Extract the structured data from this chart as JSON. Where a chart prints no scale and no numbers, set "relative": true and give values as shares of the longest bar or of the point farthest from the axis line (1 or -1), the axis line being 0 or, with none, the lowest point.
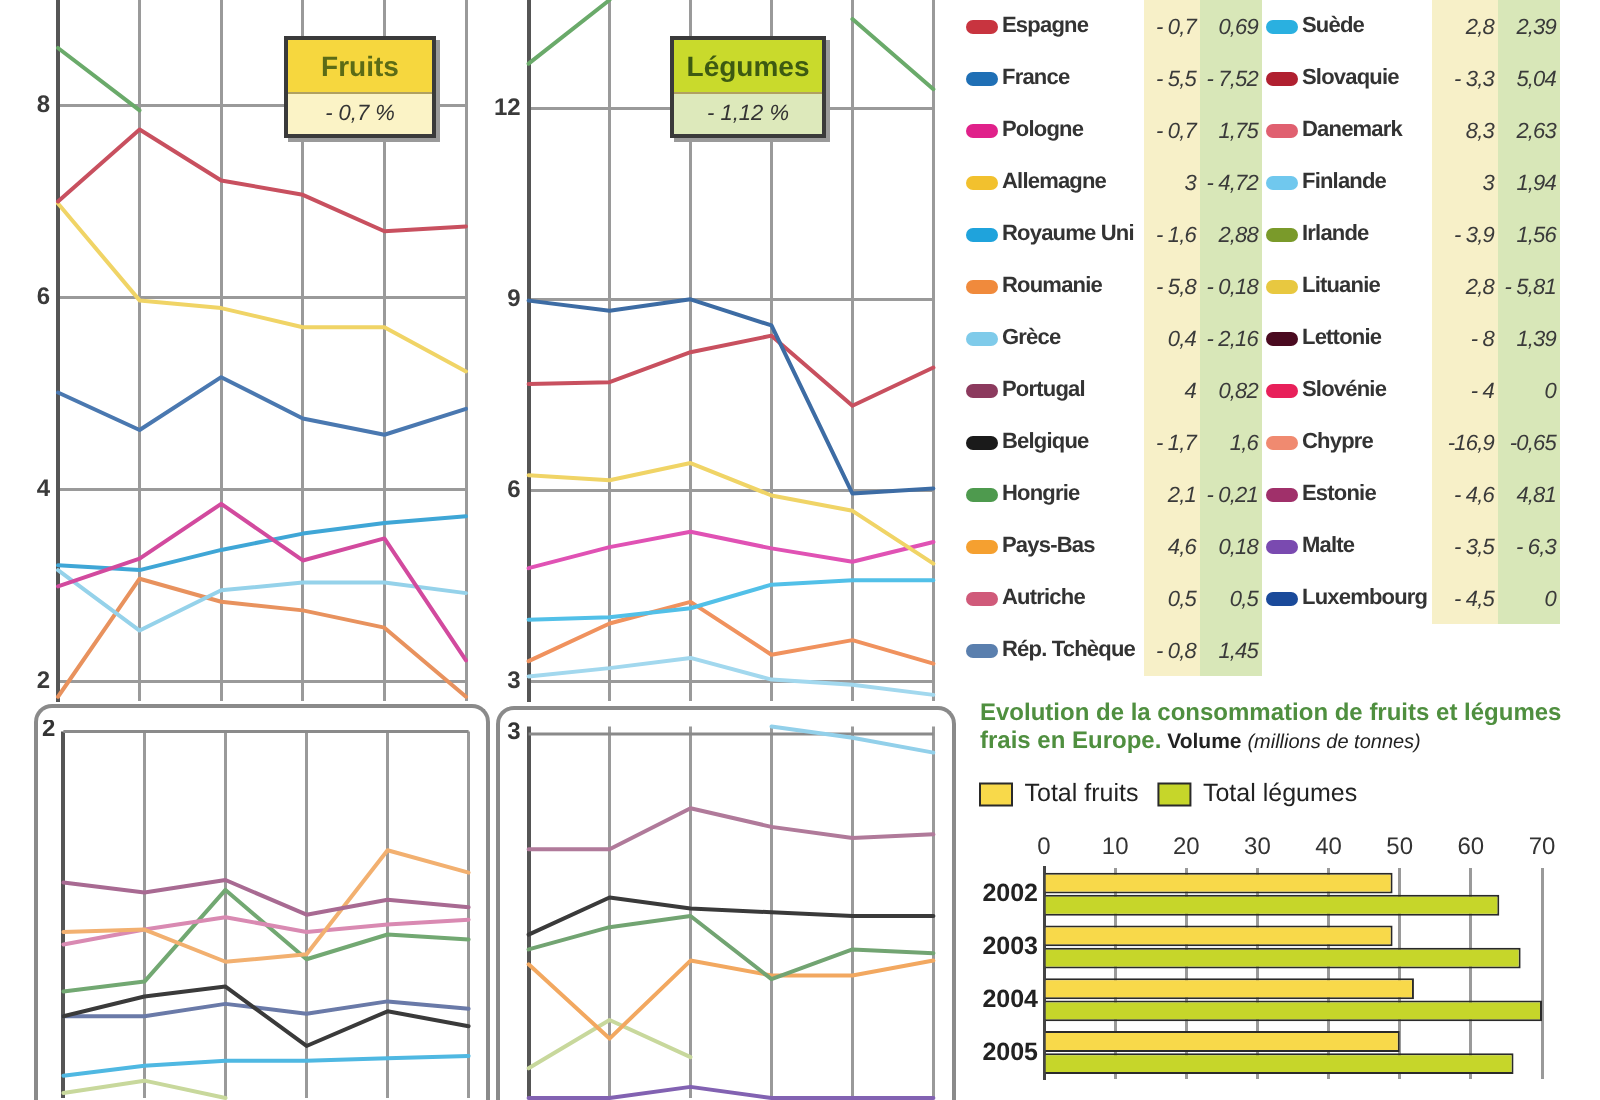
{
  "chart_data": [
    {
      "type": "line",
      "categories": [
        null,
        null,
        null,
        null,
        null,
        null
      ],
      "series": [
        {
          "color": "#6aaa6a",
          "values": [
            8.6,
            7.95,
            null,
            null,
            null,
            null
          ]
        },
        {
          "color": "#c8505f",
          "values": [
            7.0,
            7.75,
            7.22,
            7.07,
            6.69,
            6.74
          ]
        },
        {
          "color": "#f0d466",
          "values": [
            6.98,
            5.97,
            5.89,
            5.69,
            5.69,
            5.23
          ]
        },
        {
          "color": "#4a78b0",
          "values": [
            5.01,
            4.62,
            5.17,
            4.74,
            4.57,
            4.84
          ]
        },
        {
          "color": "#d24a9e",
          "values": [
            2.99,
            3.28,
            3.85,
            3.26,
            3.49,
            2.22
          ]
        },
        {
          "color": "#3fa6d6",
          "values": [
            3.21,
            3.16,
            3.37,
            3.54,
            3.65,
            3.72
          ]
        },
        {
          "color": "#95d2ea",
          "values": [
            3.16,
            2.53,
            2.95,
            3.03,
            3.03,
            2.92
          ]
        },
        {
          "color": "#e8925e",
          "values": [
            1.84,
            3.07,
            2.83,
            2.74,
            2.56,
            1.84
          ]
        }
      ],
      "ylim": [
        1.8,
        9.1
      ],
      "yticks": [
        2,
        4,
        6,
        8
      ],
      "grid": true,
      "tick_labels": "y",
      "marker": "none",
      "annotations": [
        "Fruits",
        "- 0,7 %"
      ]
    },
    {
      "type": "line",
      "categories": [
        null,
        null,
        null,
        null,
        null,
        null
      ],
      "series": [
        {
          "color": "#6aaa6a",
          "values": [
            12.7,
            13.7,
            null,
            null,
            13.4,
            12.3
          ]
        },
        {
          "color": "#3d6ca4",
          "values": [
            8.98,
            8.82,
            9.0,
            8.59,
            5.95,
            6.03
          ]
        },
        {
          "color": "#c8505f",
          "values": [
            7.67,
            7.7,
            8.17,
            8.43,
            7.33,
            7.93
          ]
        },
        {
          "color": "#f0d466",
          "values": [
            6.24,
            6.16,
            6.43,
            5.92,
            5.68,
            4.85
          ]
        },
        {
          "color": "#e052b4",
          "values": [
            4.78,
            5.11,
            5.35,
            5.09,
            4.88,
            5.19
          ]
        },
        {
          "color": "#52c0e8",
          "values": [
            3.97,
            4.01,
            4.15,
            4.52,
            4.59,
            4.59
          ]
        },
        {
          "color": "#f0925e",
          "values": [
            3.32,
            3.91,
            4.25,
            3.42,
            3.65,
            3.28
          ]
        },
        {
          "color": "#a2d8ee",
          "values": [
            3.08,
            3.21,
            3.37,
            3.03,
            2.95,
            2.79
          ]
        }
      ],
      "ylim": [
        2.7,
        13.7
      ],
      "yticks": [
        3,
        6,
        9,
        12
      ],
      "grid": true,
      "tick_labels": "y",
      "marker": "none",
      "annotations": [
        "Légumes",
        "- 1,12 %"
      ]
    },
    {
      "type": "other",
      "categories": [
        "Espagne",
        "France",
        "Pologne",
        "Allemagne",
        "Royaume Uni",
        "Roumanie",
        "Grèce",
        "Portugal",
        "Belgique",
        "Hongrie",
        "Pays-Bas",
        "Autriche",
        "Rép. Tchèque"
      ],
      "colors": [
        "#c8343f",
        "#1f6fb5",
        "#e0218a",
        "#f2c12e",
        "#1fa3dc",
        "#f08a3c",
        "#7fcbea",
        "#8c3a5e",
        "#1a1a1a",
        "#4e9a4e",
        "#f5a030",
        "#d05a7a",
        "#5a7fae"
      ],
      "series": [
        {
          "color": "#f7f0c8",
          "values": [
            -0.7,
            -5.5,
            -0.7,
            3,
            -1.6,
            -5.8,
            0.4,
            4,
            -1.7,
            2.1,
            4.6,
            0.5,
            -0.8
          ],
          "value_labels": [
            "- 0,7",
            "- 5,5",
            "- 0,7",
            "3",
            "- 1,6",
            "- 5,8",
            "0,4",
            "4",
            "- 1,7",
            "2,1",
            "4,6",
            "0,5",
            "- 0,8"
          ]
        },
        {
          "color": "#d8e7b8",
          "values": [
            0.69,
            -7.52,
            1.75,
            -4.72,
            2.88,
            -0.18,
            -2.16,
            0.82,
            1.6,
            -0.21,
            0.18,
            0.5,
            1.45
          ],
          "value_labels": [
            "0,69",
            "- 7,52",
            "1,75",
            "- 4,72",
            "2,88",
            "- 0,18",
            "- 2,16",
            "0,82",
            "1,6",
            "- 0,21",
            "0,18",
            "0,5",
            "1,45"
          ]
        }
      ]
    },
    {
      "type": "other",
      "categories": [
        "Suède",
        "Slovaquie",
        "Danemark",
        "Finlande",
        "Irlande",
        "Lituanie",
        "Lettonie",
        "Slovénie",
        "Chypre",
        "Estonie",
        "Malte",
        "Luxembourg"
      ],
      "colors": [
        "#2ab0e0",
        "#b02030",
        "#e06070",
        "#70c8ee",
        "#7a9a2a",
        "#e8c840",
        "#4a0a20",
        "#e8205a",
        "#f08a70",
        "#a0306a",
        "#7a4ab0",
        "#1a4a9a"
      ],
      "series": [
        {
          "color": "#f7f0c8",
          "values": [
            2.8,
            -3.3,
            8.3,
            3,
            -3.9,
            2.8,
            -8,
            -4,
            -16.9,
            -4.6,
            -3.5,
            -4.5
          ],
          "value_labels": [
            "2,8",
            "- 3,3",
            "8,3",
            "3",
            "- 3,9",
            "2,8",
            "- 8",
            "- 4",
            "-16,9",
            "- 4,6",
            "- 3,5",
            "- 4,5"
          ]
        },
        {
          "color": "#d8e7b8",
          "values": [
            2.39,
            5.04,
            2.63,
            1.94,
            1.56,
            -5.81,
            1.39,
            0,
            -0.65,
            4.81,
            -6.3,
            0
          ],
          "value_labels": [
            "2,39",
            "5,04",
            "2,63",
            "1,94",
            "1,56",
            "- 5,81",
            "1,39",
            "0",
            "-0,65",
            "4,81",
            "- 6,3",
            "0"
          ]
        }
      ]
    },
    {
      "type": "line",
      "relative": true,
      "categories": [
        null,
        null,
        null,
        null,
        null,
        null
      ],
      "series": [
        {
          "color": "#a86a92",
          "values": [
            0.87,
            0.83,
            0.88,
            0.74,
            0.8,
            0.77
          ]
        },
        {
          "color": "#f2b070",
          "values": [
            0.67,
            0.68,
            0.55,
            0.58,
            1.0,
            0.91
          ]
        },
        {
          "color": "#d98ab2",
          "values": [
            0.62,
            0.68,
            0.73,
            0.67,
            0.7,
            0.72
          ]
        },
        {
          "color": "#72a872",
          "values": [
            0.43,
            0.47,
            0.84,
            0.56,
            0.66,
            0.64
          ]
        },
        {
          "color": "#3a3a3a",
          "values": [
            0.33,
            0.41,
            0.45,
            0.21,
            0.35,
            0.29
          ]
        },
        {
          "color": "#6a7aa8",
          "values": [
            0.33,
            0.33,
            0.38,
            0.34,
            0.39,
            0.36
          ]
        },
        {
          "color": "#4fb8e2",
          "values": [
            0.09,
            0.13,
            0.15,
            0.15,
            0.16,
            0.17
          ]
        },
        {
          "color": "#c8d89c",
          "values": [
            0.02,
            0.07,
            0.0,
            null,
            null,
            null
          ]
        }
      ],
      "ref_lines": [
        {
          "axis": "y",
          "value": 1.48
        }
      ],
      "annotations": [
        "2"
      ],
      "grid": "x",
      "tick_labels": false,
      "marker": "none"
    },
    {
      "type": "line",
      "relative": true,
      "categories": [
        null,
        null,
        null,
        null,
        null,
        null
      ],
      "series": [
        {
          "color": "#92d0ea",
          "values": [
            null,
            null,
            null,
            1.0,
            0.97,
            0.93
          ]
        },
        {
          "color": "#b07a9a",
          "values": [
            0.67,
            0.67,
            0.78,
            0.73,
            0.7,
            0.71
          ]
        },
        {
          "color": "#3a3a3a",
          "values": [
            0.44,
            0.54,
            0.51,
            0.5,
            0.49,
            0.49
          ]
        },
        {
          "color": "#72a472",
          "values": [
            0.4,
            0.46,
            0.49,
            0.32,
            0.4,
            0.39
          ]
        },
        {
          "color": "#f2a860",
          "values": [
            0.36,
            0.16,
            0.37,
            0.33,
            0.33,
            0.37
          ]
        },
        {
          "color": "#c8d89c",
          "values": [
            0.08,
            0.21,
            0.11,
            null,
            null,
            null
          ]
        },
        {
          "color": "#8262b2",
          "values": [
            0.0,
            0.0,
            0.03,
            0.0,
            0.0,
            0.0
          ]
        }
      ],
      "ref_lines": [
        {
          "axis": "y",
          "value": 0.98
        }
      ],
      "annotations": [
        "3"
      ],
      "grid": "x",
      "tick_labels": false,
      "marker": "none"
    },
    {
      "type": "bar",
      "orientation": "horizontal",
      "title": "Evolution de la consommation de fruits et légumes frais en Europe. Volume (millions de tonnes)",
      "categories": [
        "2002",
        "2003",
        "2004",
        "2005"
      ],
      "series": [
        {
          "name": "Total fruits",
          "color": "#f8d94a",
          "values": [
            49,
            49,
            52,
            50
          ]
        },
        {
          "name": "Total légumes",
          "color": "#c6d62a",
          "values": [
            64,
            67,
            70,
            66
          ]
        }
      ],
      "xlim": [
        0,
        70
      ],
      "xticks": [
        0,
        10,
        20,
        30,
        40,
        50,
        60,
        70
      ],
      "grid": "x",
      "legend": "top left"
    }
  ]
}
